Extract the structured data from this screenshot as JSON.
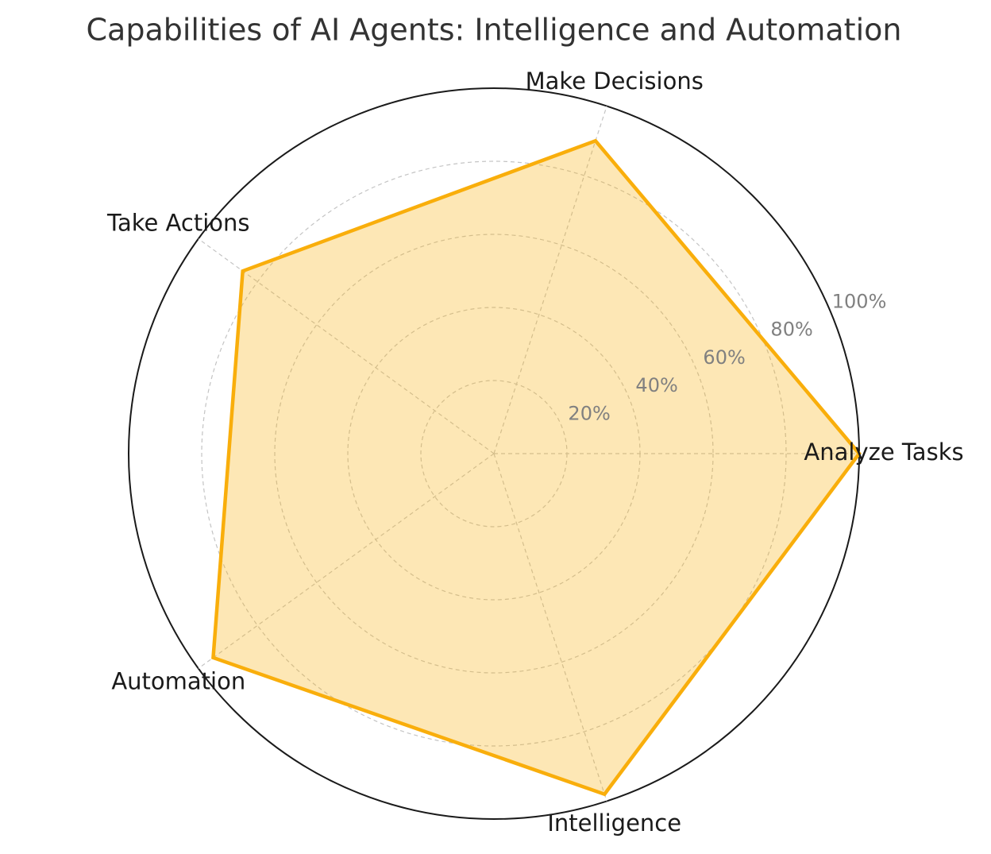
{
  "chart_data": {
    "type": "radar",
    "title": "Capabilities of AI Agents: Intelligence and Automation",
    "categories": [
      "Analyze Tasks",
      "Make Decisions",
      "Take Actions",
      "Automation",
      "Intelligence"
    ],
    "values": [
      100,
      90,
      85,
      95,
      98
    ],
    "color": "#f9ae0b",
    "ylim": [
      0,
      100
    ],
    "yticks": [
      {
        "value": 20,
        "label": "20%"
      },
      {
        "value": 40,
        "label": "40%"
      },
      {
        "value": 60,
        "label": "60%"
      },
      {
        "value": 80,
        "label": "80%"
      },
      {
        "value": 100,
        "label": "100%"
      }
    ],
    "grid": true
  }
}
